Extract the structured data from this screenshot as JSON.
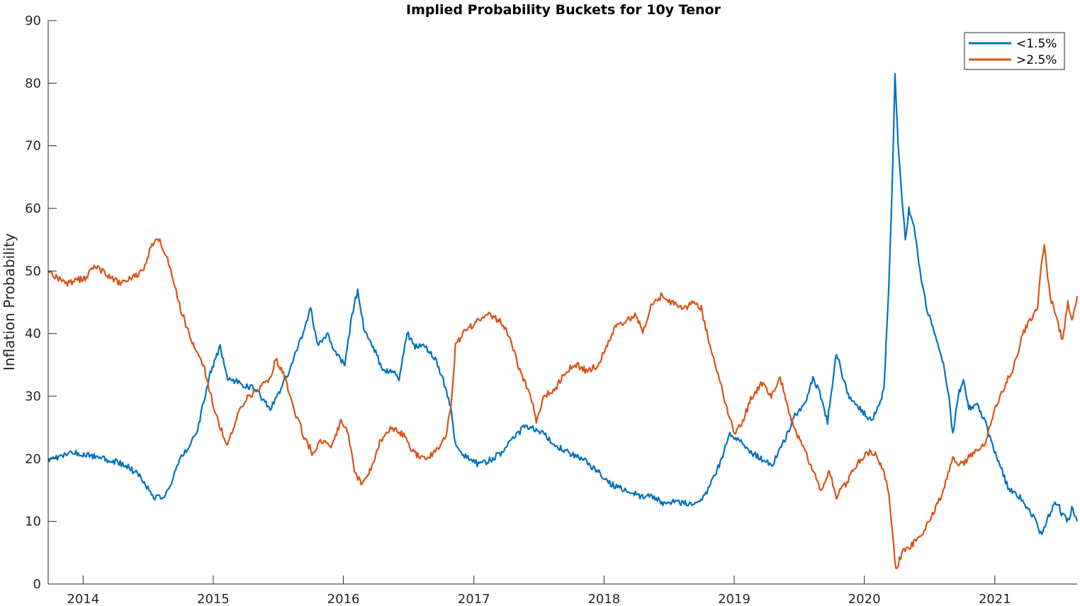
{
  "chart_data": {
    "type": "line",
    "title": "Implied Probability Buckets for 10y Tenor",
    "xlabel": "",
    "ylabel": "Inflation Probability",
    "xlim": [
      "2013-09-25",
      "2021-08-20"
    ],
    "ylim": [
      0,
      90
    ],
    "y_ticks": [
      0,
      10,
      20,
      30,
      40,
      50,
      60,
      70,
      80,
      90
    ],
    "x_ticks": [
      "2014",
      "2015",
      "2016",
      "2017",
      "2018",
      "2019",
      "2020",
      "2021"
    ],
    "x_tick_dates": [
      "2014-01-01",
      "2015-01-01",
      "2016-01-01",
      "2017-01-01",
      "2018-01-01",
      "2019-01-01",
      "2020-01-01",
      "2021-01-01"
    ],
    "grid": false,
    "legend_position": "top-right",
    "series": [
      {
        "name": "<1.5%",
        "color": "#0072BD",
        "points": [
          [
            "2013-09-25",
            20
          ],
          [
            "2013-12-15",
            21
          ],
          [
            "2014-03-01",
            20
          ],
          [
            "2014-05-01",
            19
          ],
          [
            "2014-06-15",
            17
          ],
          [
            "2014-07-15",
            14
          ],
          [
            "2014-08-20",
            14
          ],
          [
            "2014-10-01",
            20
          ],
          [
            "2014-11-15",
            24
          ],
          [
            "2014-12-20",
            33
          ],
          [
            "2015-01-20",
            38
          ],
          [
            "2015-02-10",
            33
          ],
          [
            "2015-03-20",
            32
          ],
          [
            "2015-05-01",
            31
          ],
          [
            "2015-06-10",
            28
          ],
          [
            "2015-07-10",
            31
          ],
          [
            "2015-08-15",
            36
          ],
          [
            "2015-09-10",
            40
          ],
          [
            "2015-10-01",
            44
          ],
          [
            "2015-10-20",
            38
          ],
          [
            "2015-11-15",
            40
          ],
          [
            "2015-12-10",
            37
          ],
          [
            "2016-01-05",
            35
          ],
          [
            "2016-01-25",
            43
          ],
          [
            "2016-02-10",
            47
          ],
          [
            "2016-03-01",
            40
          ],
          [
            "2016-03-25",
            38
          ],
          [
            "2016-04-20",
            34
          ],
          [
            "2016-05-15",
            34
          ],
          [
            "2016-06-05",
            33
          ],
          [
            "2016-06-28",
            40
          ],
          [
            "2016-07-20",
            38
          ],
          [
            "2016-08-15",
            38
          ],
          [
            "2016-09-15",
            36
          ],
          [
            "2016-10-10",
            32
          ],
          [
            "2016-10-28",
            28
          ],
          [
            "2016-11-10",
            22
          ],
          [
            "2016-12-15",
            20
          ],
          [
            "2017-01-20",
            19
          ],
          [
            "2017-02-20",
            20
          ],
          [
            "2017-03-20",
            21
          ],
          [
            "2017-04-20",
            23
          ],
          [
            "2017-05-20",
            25
          ],
          [
            "2017-06-15",
            25
          ],
          [
            "2017-07-15",
            24
          ],
          [
            "2017-08-20",
            22
          ],
          [
            "2017-09-20",
            21
          ],
          [
            "2017-11-01",
            20
          ],
          [
            "2017-12-15",
            18
          ],
          [
            "2018-01-20",
            16
          ],
          [
            "2018-03-01",
            15
          ],
          [
            "2018-04-15",
            14
          ],
          [
            "2018-05-15",
            14
          ],
          [
            "2018-06-15",
            13
          ],
          [
            "2018-07-20",
            13
          ],
          [
            "2018-08-20",
            13
          ],
          [
            "2018-09-20",
            13
          ],
          [
            "2018-10-20",
            15
          ],
          [
            "2018-11-20",
            19
          ],
          [
            "2018-12-20",
            24
          ],
          [
            "2019-01-20",
            23
          ],
          [
            "2019-02-20",
            21
          ],
          [
            "2019-03-20",
            20
          ],
          [
            "2019-04-20",
            19
          ],
          [
            "2019-05-10",
            22
          ],
          [
            "2019-06-01",
            24
          ],
          [
            "2019-06-20",
            27
          ],
          [
            "2019-07-20",
            29
          ],
          [
            "2019-08-10",
            33
          ],
          [
            "2019-09-01",
            30
          ],
          [
            "2019-09-20",
            26
          ],
          [
            "2019-10-15",
            37
          ],
          [
            "2019-11-01",
            33
          ],
          [
            "2019-11-20",
            30
          ],
          [
            "2019-12-20",
            28
          ],
          [
            "2020-01-20",
            26
          ],
          [
            "2020-02-05",
            28
          ],
          [
            "2020-02-25",
            31
          ],
          [
            "2020-03-10",
            48
          ],
          [
            "2020-03-20",
            65
          ],
          [
            "2020-03-27",
            81
          ],
          [
            "2020-04-05",
            70
          ],
          [
            "2020-04-15",
            62
          ],
          [
            "2020-04-25",
            55
          ],
          [
            "2020-05-05",
            60
          ],
          [
            "2020-05-20",
            57
          ],
          [
            "2020-06-05",
            50
          ],
          [
            "2020-06-25",
            44
          ],
          [
            "2020-07-15",
            40
          ],
          [
            "2020-08-10",
            35
          ],
          [
            "2020-08-25",
            30
          ],
          [
            "2020-09-05",
            24
          ],
          [
            "2020-09-20",
            30
          ],
          [
            "2020-10-05",
            33
          ],
          [
            "2020-10-20",
            28
          ],
          [
            "2020-11-10",
            29
          ],
          [
            "2020-12-05",
            26
          ],
          [
            "2020-12-25",
            22
          ],
          [
            "2021-01-15",
            19
          ],
          [
            "2021-02-10",
            15
          ],
          [
            "2021-03-10",
            14
          ],
          [
            "2021-04-05",
            12
          ],
          [
            "2021-04-25",
            10
          ],
          [
            "2021-05-10",
            8
          ],
          [
            "2021-05-25",
            10
          ],
          [
            "2021-06-10",
            12
          ],
          [
            "2021-06-25",
            13
          ],
          [
            "2021-07-10",
            11
          ],
          [
            "2021-07-25",
            10
          ],
          [
            "2021-08-05",
            12
          ],
          [
            "2021-08-20",
            10
          ]
        ]
      },
      {
        "name": ">2.5%",
        "color": "#D95319",
        "points": [
          [
            "2013-09-25",
            50
          ],
          [
            "2013-11-15",
            48
          ],
          [
            "2014-01-10",
            49
          ],
          [
            "2014-02-01",
            51
          ],
          [
            "2014-03-15",
            49
          ],
          [
            "2014-04-15",
            48
          ],
          [
            "2014-05-20",
            49
          ],
          [
            "2014-06-20",
            50
          ],
          [
            "2014-07-10",
            54
          ],
          [
            "2014-08-01",
            55
          ],
          [
            "2014-08-20",
            53
          ],
          [
            "2014-09-10",
            49
          ],
          [
            "2014-10-01",
            44
          ],
          [
            "2014-10-25",
            40
          ],
          [
            "2014-11-15",
            37
          ],
          [
            "2014-12-05",
            35
          ],
          [
            "2014-12-20",
            31
          ],
          [
            "2015-01-15",
            26
          ],
          [
            "2015-02-10",
            22
          ],
          [
            "2015-03-10",
            27
          ],
          [
            "2015-04-10",
            30
          ],
          [
            "2015-05-10",
            31
          ],
          [
            "2015-06-10",
            33
          ],
          [
            "2015-06-25",
            36
          ],
          [
            "2015-07-20",
            33
          ],
          [
            "2015-08-15",
            28
          ],
          [
            "2015-09-10",
            24
          ],
          [
            "2015-10-05",
            21
          ],
          [
            "2015-11-01",
            23
          ],
          [
            "2015-12-01",
            22
          ],
          [
            "2015-12-25",
            26
          ],
          [
            "2016-01-15",
            24
          ],
          [
            "2016-02-01",
            18
          ],
          [
            "2016-02-20",
            16
          ],
          [
            "2016-03-15",
            18
          ],
          [
            "2016-04-15",
            23
          ],
          [
            "2016-05-15",
            25
          ],
          [
            "2016-06-15",
            24
          ],
          [
            "2016-07-15",
            21
          ],
          [
            "2016-08-15",
            20
          ],
          [
            "2016-09-15",
            21
          ],
          [
            "2016-10-15",
            24
          ],
          [
            "2016-11-01",
            30
          ],
          [
            "2016-11-10",
            38
          ],
          [
            "2016-12-01",
            40
          ],
          [
            "2017-01-10",
            42
          ],
          [
            "2017-02-15",
            43
          ],
          [
            "2017-03-15",
            42
          ],
          [
            "2017-04-15",
            39
          ],
          [
            "2017-05-10",
            34
          ],
          [
            "2017-06-10",
            30
          ],
          [
            "2017-06-25",
            26
          ],
          [
            "2017-07-15",
            30
          ],
          [
            "2017-08-15",
            31
          ],
          [
            "2017-09-15",
            34
          ],
          [
            "2017-10-15",
            35
          ],
          [
            "2017-11-15",
            34
          ],
          [
            "2017-12-15",
            35
          ],
          [
            "2018-01-10",
            38
          ],
          [
            "2018-02-01",
            41
          ],
          [
            "2018-03-01",
            42
          ],
          [
            "2018-04-01",
            43
          ],
          [
            "2018-04-20",
            40
          ],
          [
            "2018-05-10",
            44
          ],
          [
            "2018-06-10",
            46
          ],
          [
            "2018-07-10",
            45
          ],
          [
            "2018-08-10",
            44
          ],
          [
            "2018-09-10",
            45
          ],
          [
            "2018-10-01",
            44
          ],
          [
            "2018-10-25",
            38
          ],
          [
            "2018-11-20",
            33
          ],
          [
            "2018-12-15",
            27
          ],
          [
            "2019-01-05",
            24
          ],
          [
            "2019-01-25",
            26
          ],
          [
            "2019-02-20",
            30
          ],
          [
            "2019-03-20",
            32
          ],
          [
            "2019-04-15",
            30
          ],
          [
            "2019-05-10",
            33
          ],
          [
            "2019-06-01",
            28
          ],
          [
            "2019-06-25",
            24
          ],
          [
            "2019-07-20",
            21
          ],
          [
            "2019-08-10",
            18
          ],
          [
            "2019-09-01",
            15
          ],
          [
            "2019-09-25",
            18
          ],
          [
            "2019-10-15",
            14
          ],
          [
            "2019-11-10",
            16
          ],
          [
            "2019-12-10",
            19
          ],
          [
            "2020-01-10",
            21
          ],
          [
            "2020-02-01",
            21
          ],
          [
            "2020-02-25",
            18
          ],
          [
            "2020-03-10",
            14
          ],
          [
            "2020-03-20",
            8
          ],
          [
            "2020-03-30",
            2
          ],
          [
            "2020-04-15",
            5
          ],
          [
            "2020-05-10",
            6
          ],
          [
            "2020-06-10",
            8
          ],
          [
            "2020-07-10",
            11
          ],
          [
            "2020-08-10",
            15
          ],
          [
            "2020-09-05",
            20
          ],
          [
            "2020-10-01",
            19
          ],
          [
            "2020-11-01",
            21
          ],
          [
            "2020-12-01",
            22
          ],
          [
            "2021-01-01",
            28
          ],
          [
            "2021-02-01",
            32
          ],
          [
            "2021-02-25",
            35
          ],
          [
            "2021-03-20",
            40
          ],
          [
            "2021-04-10",
            42
          ],
          [
            "2021-05-01",
            44
          ],
          [
            "2021-05-10",
            50
          ],
          [
            "2021-05-20",
            54
          ],
          [
            "2021-06-05",
            46
          ],
          [
            "2021-06-25",
            42
          ],
          [
            "2021-07-10",
            39
          ],
          [
            "2021-07-25",
            45
          ],
          [
            "2021-08-05",
            42
          ],
          [
            "2021-08-20",
            46
          ]
        ]
      }
    ]
  }
}
